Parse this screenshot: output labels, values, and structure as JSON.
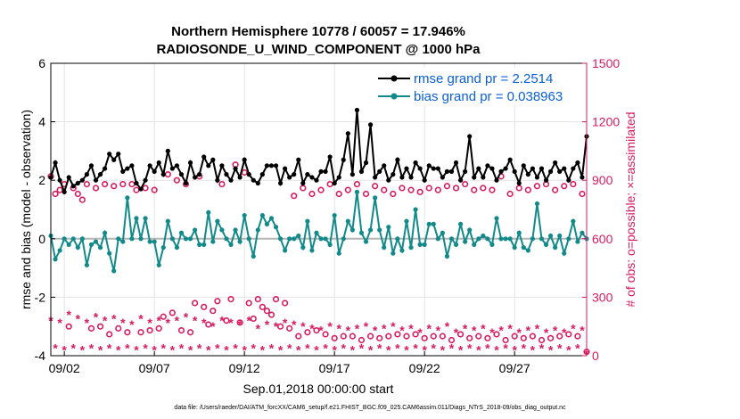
{
  "chart_data": {
    "type": "line",
    "title": [
      "Northern Hemisphere 10778 / 60057 = 17.946%",
      "RADIOSONDE_U_WIND_COMPONENT @ 1000 hPa"
    ],
    "xlabel": "Sep.01,2018 00:00:00 start",
    "ylabel": "rmse and bias (model - observation)",
    "y2label": "# of obs: o=possible; ×=assimilated",
    "x_tick_labels": [
      "09/02",
      "09/07",
      "09/12",
      "09/17",
      "09/22",
      "09/27"
    ],
    "x_ticks": [
      1,
      6,
      11,
      16,
      21,
      26
    ],
    "xlim": [
      0.25,
      30.0
    ],
    "ylim": [
      -4,
      6
    ],
    "y_ticks": [
      -4,
      -2,
      0,
      2,
      4,
      6
    ],
    "y2lim": [
      0,
      1500
    ],
    "y2_ticks": [
      0,
      300,
      600,
      900,
      1200,
      1500
    ],
    "grid": true,
    "legend_position": "top-right",
    "footnote": "data file: /Users/raeder/DAI/ATM_forcXX/CAM6_setup/f.e21.FHIST_BGC.f09_025.CAM6assim.011/Diags_NTrS_2018-09/obs_diag_output.nc",
    "series": [
      {
        "name": "rmse grand pr = 2.2514",
        "color": "#000000",
        "axis": "left",
        "x": [
          0.25,
          0.5,
          0.75,
          1.0,
          1.25,
          1.5,
          1.75,
          2.0,
          2.25,
          2.5,
          2.75,
          3.0,
          3.25,
          3.5,
          3.75,
          4.0,
          4.25,
          4.5,
          4.75,
          5.0,
          5.25,
          5.5,
          5.75,
          6.0,
          6.25,
          6.5,
          6.75,
          7.0,
          7.25,
          7.5,
          7.75,
          8.0,
          8.25,
          8.5,
          8.75,
          9.0,
          9.25,
          9.5,
          9.75,
          10.0,
          10.25,
          10.5,
          10.75,
          11.0,
          11.25,
          11.5,
          11.75,
          12.0,
          12.25,
          12.5,
          12.75,
          13.0,
          13.25,
          13.5,
          13.75,
          14.0,
          14.25,
          14.5,
          14.75,
          15.0,
          15.25,
          15.5,
          15.75,
          16.0,
          16.25,
          16.5,
          16.75,
          17.0,
          17.25,
          17.5,
          17.75,
          18.0,
          18.25,
          18.5,
          18.75,
          19.0,
          19.25,
          19.5,
          19.75,
          20.0,
          20.25,
          20.5,
          20.75,
          21.0,
          21.25,
          21.5,
          21.75,
          22.0,
          22.25,
          22.5,
          22.75,
          23.0,
          23.25,
          23.5,
          23.75,
          24.0,
          24.25,
          24.5,
          24.75,
          25.0,
          25.25,
          25.5,
          25.75,
          26.0,
          26.25,
          26.5,
          26.75,
          27.0,
          27.25,
          27.5,
          27.75,
          28.0,
          28.25,
          28.5,
          28.75,
          29.0,
          29.25,
          29.5,
          29.75,
          30.0
        ],
        "values": [
          2.1,
          2.6,
          2.0,
          1.6,
          2.1,
          1.8,
          1.9,
          2.0,
          2.2,
          2.5,
          2.0,
          2.2,
          2.4,
          2.9,
          2.7,
          2.9,
          2.3,
          2.4,
          2.5,
          1.9,
          1.7,
          2.0,
          2.5,
          2.3,
          2.6,
          2.2,
          3.0,
          2.4,
          2.5,
          2.2,
          1.9,
          2.6,
          2.1,
          2.2,
          2.8,
          2.5,
          2.7,
          2.0,
          2.5,
          2.2,
          2.0,
          2.4,
          2.1,
          2.7,
          2.2,
          2.0,
          1.9,
          2.2,
          2.5,
          2.5,
          2.5,
          1.9,
          2.4,
          2.1,
          2.2,
          2.7,
          1.9,
          2.2,
          2.1,
          2.0,
          2.3,
          2.3,
          2.8,
          1.9,
          2.1,
          2.7,
          3.6,
          2.2,
          4.4,
          2.3,
          2.6,
          3.9,
          2.1,
          2.3,
          2.5,
          2.0,
          2.2,
          2.7,
          2.1,
          2.4,
          2.1,
          2.6,
          2.4,
          2.0,
          2.5,
          2.4,
          2.4,
          2.1,
          2.3,
          2.3,
          2.6,
          2.0,
          2.3,
          3.5,
          2.1,
          2.4,
          2.1,
          2.5,
          2.4,
          2.0,
          2.3,
          2.4,
          2.7,
          2.3,
          1.9,
          2.5,
          2.2,
          2.4,
          2.1,
          2.4,
          2.0,
          2.3,
          2.6,
          2.3,
          2.4,
          2.0,
          2.4,
          2.6,
          2.1,
          3.5
        ]
      },
      {
        "name": "bias grand pr = 0.038963",
        "color": "#138a8a",
        "axis": "left",
        "x": [
          0.25,
          0.5,
          0.75,
          1.0,
          1.25,
          1.5,
          1.75,
          2.0,
          2.25,
          2.5,
          2.75,
          3.0,
          3.25,
          3.5,
          3.75,
          4.0,
          4.25,
          4.5,
          4.75,
          5.0,
          5.25,
          5.5,
          5.75,
          6.0,
          6.25,
          6.5,
          6.75,
          7.0,
          7.25,
          7.5,
          7.75,
          8.0,
          8.25,
          8.5,
          8.75,
          9.0,
          9.25,
          9.5,
          9.75,
          10.0,
          10.25,
          10.5,
          10.75,
          11.0,
          11.25,
          11.5,
          11.75,
          12.0,
          12.25,
          12.5,
          12.75,
          13.0,
          13.25,
          13.5,
          13.75,
          14.0,
          14.25,
          14.5,
          14.75,
          15.0,
          15.25,
          15.5,
          15.75,
          16.0,
          16.25,
          16.5,
          16.75,
          17.0,
          17.25,
          17.5,
          17.75,
          18.0,
          18.25,
          18.5,
          18.75,
          19.0,
          19.25,
          19.5,
          19.75,
          20.0,
          20.25,
          20.5,
          20.75,
          21.0,
          21.25,
          21.5,
          21.75,
          22.0,
          22.25,
          22.5,
          22.75,
          23.0,
          23.25,
          23.5,
          23.75,
          24.0,
          24.25,
          24.5,
          24.75,
          25.0,
          25.25,
          25.5,
          25.75,
          26.0,
          26.25,
          26.5,
          26.75,
          27.0,
          27.25,
          27.5,
          27.75,
          28.0,
          28.25,
          28.5,
          28.75,
          29.0,
          29.25,
          29.5,
          29.75,
          30.0
        ],
        "values": [
          0.1,
          -0.7,
          -0.4,
          0.0,
          -0.2,
          0.0,
          -0.3,
          0.0,
          -0.9,
          -0.2,
          -0.1,
          -0.3,
          0.2,
          -0.5,
          -1.1,
          0.0,
          -0.1,
          1.4,
          0.0,
          0.7,
          0.0,
          0.7,
          -0.1,
          -0.1,
          -0.9,
          -0.3,
          0.6,
          0.0,
          -0.3,
          0.2,
          0.0,
          0.0,
          0.3,
          -0.2,
          -0.2,
          0.9,
          -0.1,
          0.6,
          0.3,
          0.0,
          -0.2,
          0.3,
          -0.1,
          0.8,
          0.0,
          -0.6,
          0.3,
          0.8,
          0.5,
          0.7,
          0.4,
          0.0,
          -0.4,
          0.0,
          0.0,
          0.1,
          -0.3,
          0.6,
          -0.4,
          0.2,
          0.0,
          0.0,
          -0.2,
          0.8,
          -0.5,
          0.0,
          0.6,
          0.3,
          1.6,
          0.2,
          -0.1,
          0.3,
          1.4,
          0.3,
          -0.3,
          0.4,
          -0.5,
          0.0,
          -0.4,
          0.6,
          -0.3,
          1.0,
          -0.2,
          -0.2,
          0.5,
          0.5,
          0.0,
          0.2,
          -0.6,
          0.0,
          -0.2,
          0.5,
          -0.1,
          0.3,
          -0.2,
          0.0,
          0.1,
          0.0,
          -0.2,
          0.7,
          0.0,
          0.0,
          0.0,
          -0.3,
          0.2,
          -0.3,
          -0.4,
          0.0,
          1.2,
          0.0,
          -0.2,
          0.1,
          -0.3,
          0.1,
          -0.5,
          0.0,
          0.6,
          -0.1,
          0.2,
          0.0
        ]
      },
      {
        "name": "obs possible",
        "color": "#d81b60",
        "axis": "right",
        "marker": "circle",
        "x": [
          0.25,
          0.5,
          0.75,
          1.0,
          1.25,
          1.5,
          1.75,
          2.0,
          2.25,
          2.5,
          2.75,
          3.0,
          3.25,
          3.5,
          3.75,
          4.0,
          4.25,
          4.5,
          4.75,
          5.0,
          5.25,
          5.5,
          5.75,
          6.0,
          6.25,
          6.5,
          6.75,
          7.0,
          7.25,
          7.5,
          7.75,
          8.0,
          8.25,
          8.5,
          8.75,
          9.0,
          9.25,
          9.5,
          9.75,
          10.0,
          10.25,
          10.5,
          10.75,
          11.0,
          11.25,
          11.5,
          11.75,
          12.0,
          12.25,
          12.5,
          12.75,
          13.0,
          13.25,
          13.5,
          13.75,
          14.0,
          14.25,
          14.5,
          14.75,
          15.0,
          15.25,
          15.5,
          15.75,
          16.0,
          16.25,
          16.5,
          16.75,
          17.0,
          17.25,
          17.5,
          17.75,
          18.0,
          18.25,
          18.5,
          18.75,
          19.0,
          19.25,
          19.5,
          19.75,
          20.0,
          20.25,
          20.5,
          20.75,
          21.0,
          21.25,
          21.5,
          21.75,
          22.0,
          22.25,
          22.5,
          22.75,
          23.0,
          23.25,
          23.5,
          23.75,
          24.0,
          24.25,
          24.5,
          24.75,
          25.0,
          25.25,
          25.5,
          25.75,
          26.0,
          26.25,
          26.5,
          26.75,
          27.0,
          27.25,
          27.5,
          27.75,
          28.0,
          28.25,
          28.5,
          28.75,
          29.0,
          29.25,
          29.5,
          29.75,
          30.0
        ],
        "values": [
          920,
          830,
          850,
          880,
          150,
          860,
          830,
          800,
          880,
          140,
          860,
          150,
          880,
          110,
          870,
          140,
          880,
          120,
          880,
          850,
          120,
          860,
          130,
          850,
          140,
          200,
          930,
          220,
          900,
          130,
          880,
          120,
          270,
          920,
          250,
          160,
          230,
          280,
          880,
          180,
          290,
          980,
          170,
          940,
          270,
          190,
          290,
          250,
          230,
          210,
          290,
          150,
          270,
          140,
          820,
          100,
          860,
          120,
          830,
          130,
          850,
          110,
          880,
          90,
          830,
          100,
          850,
          100,
          880,
          80,
          830,
          100,
          870,
          90,
          850,
          100,
          830,
          110,
          860,
          100,
          850,
          110,
          840,
          90,
          860,
          100,
          850,
          100,
          870,
          80,
          860,
          110,
          880,
          90,
          850,
          100,
          860,
          90,
          850,
          110,
          920,
          80,
          830,
          100,
          860,
          90,
          850,
          100,
          870,
          80,
          880,
          90,
          850,
          100,
          870,
          110,
          880,
          100,
          830,
          20
        ]
      },
      {
        "name": "obs assimilated",
        "color": "#d81b60",
        "axis": "right",
        "marker": "star",
        "x": [
          0.25,
          0.5,
          0.75,
          1.0,
          1.25,
          1.5,
          1.75,
          2.0,
          2.25,
          2.5,
          2.75,
          3.0,
          3.25,
          3.5,
          3.75,
          4.0,
          4.25,
          4.5,
          4.75,
          5.0,
          5.25,
          5.5,
          5.75,
          6.0,
          6.25,
          6.5,
          6.75,
          7.0,
          7.25,
          7.5,
          7.75,
          8.0,
          8.25,
          8.5,
          8.75,
          9.0,
          9.25,
          9.5,
          9.75,
          10.0,
          10.25,
          10.5,
          10.75,
          11.0,
          11.25,
          11.5,
          11.75,
          12.0,
          12.25,
          12.5,
          12.75,
          13.0,
          13.25,
          13.5,
          13.75,
          14.0,
          14.25,
          14.5,
          14.75,
          15.0,
          15.25,
          15.5,
          15.75,
          16.0,
          16.25,
          16.5,
          16.75,
          17.0,
          17.25,
          17.5,
          17.75,
          18.0,
          18.25,
          18.5,
          18.75,
          19.0,
          19.25,
          19.5,
          19.75,
          20.0,
          20.25,
          20.5,
          20.75,
          21.0,
          21.25,
          21.5,
          21.75,
          22.0,
          22.25,
          22.5,
          22.75,
          23.0,
          23.25,
          23.5,
          23.75,
          24.0,
          24.25,
          24.5,
          24.75,
          25.0,
          25.25,
          25.5,
          25.75,
          26.0,
          26.25,
          26.5,
          26.75,
          27.0,
          27.25,
          27.5,
          27.75,
          28.0,
          28.25,
          28.5,
          28.75,
          29.0,
          29.25,
          29.5,
          29.75,
          30.0
        ],
        "values": [
          180,
          40,
          170,
          30,
          210,
          40,
          190,
          30,
          170,
          40,
          200,
          30,
          180,
          40,
          190,
          30,
          170,
          40,
          160,
          30,
          190,
          40,
          170,
          30,
          180,
          40,
          170,
          30,
          180,
          40,
          200,
          30,
          180,
          40,
          170,
          30,
          150,
          40,
          180,
          30,
          170,
          40,
          160,
          30,
          180,
          40,
          140,
          30,
          160,
          40,
          150,
          30,
          170,
          40,
          160,
          30,
          150,
          40,
          140,
          30,
          130,
          40,
          150,
          30,
          140,
          40,
          130,
          30,
          140,
          40,
          150,
          30,
          130,
          40,
          140,
          30,
          150,
          40,
          130,
          30,
          140,
          40,
          120,
          30,
          140,
          40,
          130,
          30,
          150,
          40,
          120,
          30,
          140,
          40,
          130,
          30,
          140,
          40,
          120,
          30,
          130,
          40,
          140,
          30,
          120,
          40,
          130,
          30,
          140,
          40,
          120,
          30,
          130,
          40,
          120,
          30,
          140,
          40,
          130,
          10
        ]
      }
    ]
  }
}
